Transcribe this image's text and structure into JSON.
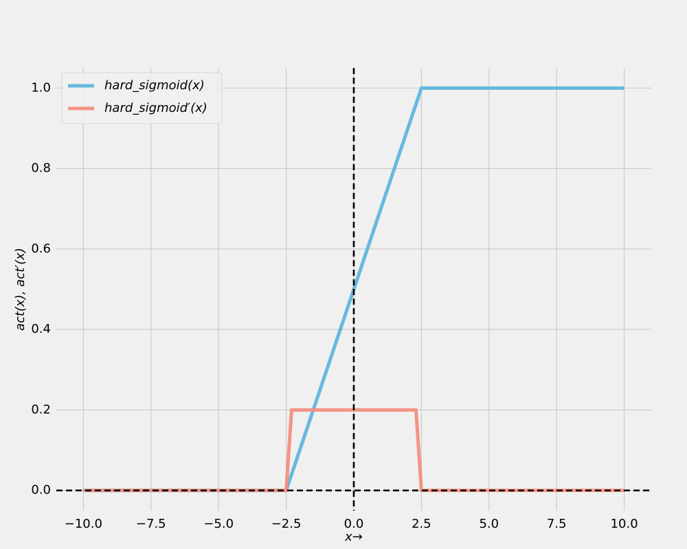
{
  "chart_data": {
    "type": "line",
    "xlabel": "x→",
    "ylabel": "act(x), act′(x)",
    "xlim": [
      -11,
      11
    ],
    "ylim": [
      -0.05,
      1.05
    ],
    "xticks": [
      -10.0,
      -7.5,
      -5.0,
      -2.5,
      0.0,
      2.5,
      5.0,
      7.5,
      10.0
    ],
    "xtick_labels": [
      "−10.0",
      "−7.5",
      "−5.0",
      "−2.5",
      "0.0",
      "2.5",
      "5.0",
      "7.5",
      "10.0"
    ],
    "yticks": [
      0.0,
      0.2,
      0.4,
      0.6,
      0.8,
      1.0
    ],
    "ytick_labels": [
      "0.0",
      "0.2",
      "0.4",
      "0.6",
      "0.8",
      "1.0"
    ],
    "grid": true,
    "legend_position": "top-left",
    "reference_lines": {
      "vertical_x": 0,
      "horizontal_y": 0,
      "style": "dashed",
      "color": "#000000"
    },
    "series": [
      {
        "name": "hard_sigmoid(x)",
        "color": "#5ab4dc",
        "x": [
          -10,
          -2.5,
          2.3,
          2.5,
          10
        ],
        "y": [
          0,
          0,
          0.96,
          1.0,
          1.0
        ]
      },
      {
        "name": "hard_sigmoid′(x)",
        "color": "#f58c7c",
        "x": [
          -10,
          -2.5,
          -2.3,
          2.3,
          2.5,
          10
        ],
        "y": [
          0,
          0,
          0.2,
          0.2,
          0,
          0
        ]
      }
    ]
  }
}
